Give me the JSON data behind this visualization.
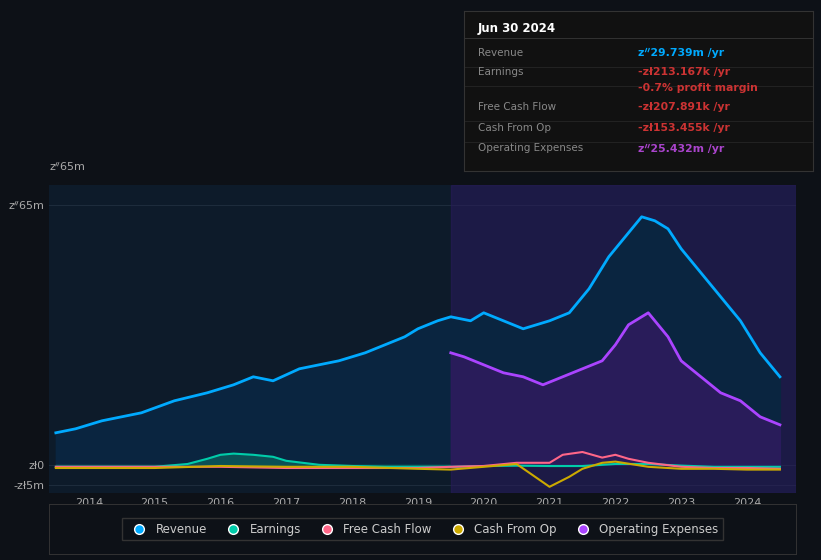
{
  "bg_color": "#0d1117",
  "plot_bg_color": "#0d1b2a",
  "title_box": {
    "date": "Jun 30 2024",
    "rows": [
      {
        "label": "Revenue",
        "value": "zᐥ29.739m /yr",
        "value_color": "#00aaff"
      },
      {
        "label": "Earnings",
        "value": "-zł213.167k /yr",
        "value_color": "#cc3333"
      },
      {
        "label": "",
        "value": "-0.7% profit margin",
        "value_color": "#cc3333"
      },
      {
        "label": "Free Cash Flow",
        "value": "-zł207.891k /yr",
        "value_color": "#cc3333"
      },
      {
        "label": "Cash From Op",
        "value": "-zł153.455k /yr",
        "value_color": "#cc3333"
      },
      {
        "label": "Operating Expenses",
        "value": "zᐥ25.432m /yr",
        "value_color": "#aa44cc"
      }
    ]
  },
  "xlim": [
    2013.4,
    2024.75
  ],
  "ylim": [
    -7,
    70
  ],
  "ytick_positions": [
    -5,
    0,
    65
  ],
  "ytick_labels": [
    "-zł5m",
    "zł0",
    "zᐥ65m"
  ],
  "xticks": [
    2014,
    2015,
    2016,
    2017,
    2018,
    2019,
    2020,
    2021,
    2022,
    2023,
    2024
  ],
  "purple_region_start": 2019.5,
  "purple_region_end": 2024.75,
  "revenue": {
    "x": [
      2013.5,
      2013.8,
      2014.2,
      2014.8,
      2015.3,
      2015.8,
      2016.2,
      2016.5,
      2016.8,
      2017.2,
      2017.8,
      2018.2,
      2018.8,
      2019.0,
      2019.3,
      2019.5,
      2019.8,
      2020.0,
      2020.3,
      2020.6,
      2021.0,
      2021.3,
      2021.6,
      2021.9,
      2022.2,
      2022.4,
      2022.6,
      2022.8,
      2023.0,
      2023.3,
      2023.6,
      2023.9,
      2024.2,
      2024.5
    ],
    "y": [
      8,
      9,
      11,
      13,
      16,
      18,
      20,
      22,
      21,
      24,
      26,
      28,
      32,
      34,
      36,
      37,
      36,
      38,
      36,
      34,
      36,
      38,
      44,
      52,
      58,
      62,
      61,
      59,
      54,
      48,
      42,
      36,
      28,
      22
    ],
    "fill_color": "#0a2540",
    "line_color": "#00aaff",
    "line_width": 2.0
  },
  "earnings": {
    "x": [
      2013.5,
      2014.0,
      2014.5,
      2015.0,
      2015.5,
      2015.8,
      2016.0,
      2016.2,
      2016.5,
      2016.8,
      2017.0,
      2017.5,
      2018.0,
      2018.5,
      2019.0,
      2019.5,
      2020.0,
      2020.5,
      2021.0,
      2021.5,
      2022.0,
      2022.5,
      2023.0,
      2023.5,
      2024.0,
      2024.5
    ],
    "y": [
      -0.5,
      -0.5,
      -0.5,
      -0.5,
      0.2,
      1.5,
      2.5,
      2.8,
      2.5,
      2.0,
      1.0,
      0.0,
      -0.3,
      -0.5,
      -0.5,
      -0.5,
      -0.3,
      -0.2,
      -0.3,
      -0.3,
      0.2,
      0.2,
      -0.2,
      -0.5,
      -0.5,
      -0.5
    ],
    "fill_color": "#0d5c5c",
    "line_color": "#00ccaa",
    "line_width": 1.5
  },
  "free_cash_flow": {
    "x": [
      2013.5,
      2014.0,
      2015.0,
      2016.0,
      2017.0,
      2018.0,
      2019.0,
      2019.5,
      2020.0,
      2020.5,
      2021.0,
      2021.2,
      2021.5,
      2021.8,
      2022.0,
      2022.2,
      2022.5,
      2023.0,
      2023.5,
      2024.0,
      2024.5
    ],
    "y": [
      -0.5,
      -0.5,
      -0.5,
      -0.5,
      -0.8,
      -0.8,
      -0.8,
      -0.5,
      -0.3,
      0.5,
      0.5,
      2.5,
      3.2,
      1.8,
      2.5,
      1.5,
      0.5,
      -0.5,
      -0.8,
      -0.8,
      -1.0
    ],
    "line_color": "#ff6688",
    "line_width": 1.5
  },
  "cash_from_op": {
    "x": [
      2013.5,
      2014.0,
      2015.0,
      2016.0,
      2017.0,
      2018.0,
      2019.0,
      2019.5,
      2020.0,
      2020.5,
      2021.0,
      2021.3,
      2021.5,
      2021.8,
      2022.0,
      2022.5,
      2023.0,
      2023.5,
      2024.0,
      2024.5
    ],
    "y": [
      -0.8,
      -0.8,
      -0.8,
      -0.3,
      -0.5,
      -0.5,
      -1.0,
      -1.2,
      -0.5,
      0.2,
      -5.5,
      -3.0,
      -1.0,
      0.5,
      0.8,
      -0.5,
      -1.0,
      -1.0,
      -1.2,
      -1.2
    ],
    "line_color": "#ccaa00",
    "line_width": 1.5
  },
  "operating_expenses": {
    "x": [
      2019.5,
      2019.7,
      2020.0,
      2020.3,
      2020.6,
      2020.9,
      2021.2,
      2021.5,
      2021.8,
      2022.0,
      2022.2,
      2022.5,
      2022.8,
      2023.0,
      2023.3,
      2023.6,
      2023.9,
      2024.2,
      2024.5
    ],
    "y": [
      28,
      27,
      25,
      23,
      22,
      20,
      22,
      24,
      26,
      30,
      35,
      38,
      32,
      26,
      22,
      18,
      16,
      12,
      10
    ],
    "fill_color": "#2d1b5e",
    "line_color": "#aa44ff",
    "line_width": 2.0
  },
  "legend": [
    {
      "label": "Revenue",
      "color": "#00aaff"
    },
    {
      "label": "Earnings",
      "color": "#00ccaa"
    },
    {
      "label": "Free Cash Flow",
      "color": "#ff6688"
    },
    {
      "label": "Cash From Op",
      "color": "#ccaa00"
    },
    {
      "label": "Operating Expenses",
      "color": "#aa44ff"
    }
  ]
}
